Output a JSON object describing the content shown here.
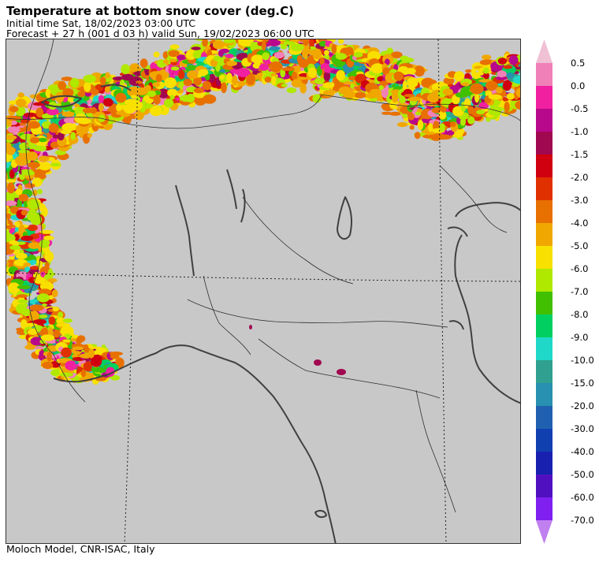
{
  "header": {
    "title": "Temperature at bottom snow cover (deg.C)",
    "initial_time": "Initial time  Sat, 18/02/2023  03:00 UTC",
    "forecast": "Forecast  +  27 h  (001 d 03 h)  valid Sun, 19/02/2023 06:00 UTC"
  },
  "footer": {
    "credit": "Moloch Model, CNR-ISAC, Italy"
  },
  "map": {
    "background_color": "#c8c8c8",
    "border_color": "#404040",
    "grid_style": "dotted"
  },
  "legend": {
    "labels": [
      "0.5",
      "0.0",
      "-0.5",
      "-1.0",
      "-1.5",
      "-2.0",
      "-3.0",
      "-4.0",
      "-5.0",
      "-6.0",
      "-7.0",
      "-8.0",
      "-9.0",
      "-10.0",
      "-15.0",
      "-20.0",
      "-30.0",
      "-40.0",
      "-50.0",
      "-60.0",
      "-70.0"
    ],
    "top_arrow_color": "#f0c0d4",
    "bottom_arrow_color": "#c080f0",
    "colors": [
      "#f080b8",
      "#f020a0",
      "#b8088c",
      "#a00850",
      "#d00010",
      "#e03000",
      "#e87000",
      "#f0a800",
      "#f8e000",
      "#b0e800",
      "#40c000",
      "#00d060",
      "#20d8c8",
      "#30a090",
      "#2890b0",
      "#2060b0",
      "#1040b0",
      "#1820b0",
      "#5010c0",
      "#8020f0"
    ]
  }
}
